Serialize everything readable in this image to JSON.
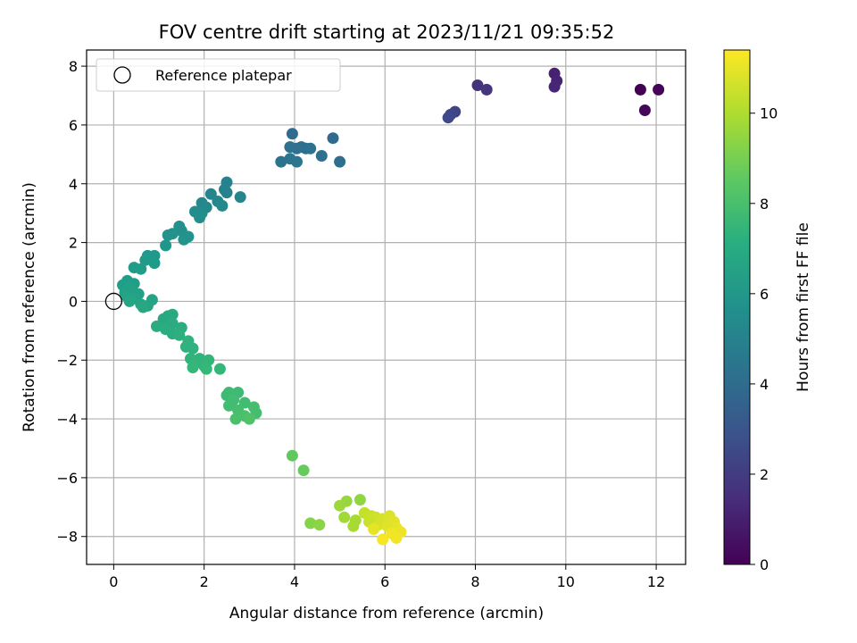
{
  "chart_data": {
    "type": "scatter",
    "title": "FOV centre drift starting at 2023/11/21 09:35:52",
    "xlabel": "Angular distance from reference (arcmin)",
    "ylabel": "Rotation from reference (arcmin)",
    "xlim": [
      -0.6,
      12.65
    ],
    "ylim": [
      -8.95,
      8.55
    ],
    "xticks": [
      0,
      2,
      4,
      6,
      8,
      10,
      12
    ],
    "yticks": [
      -8,
      -6,
      -4,
      -2,
      0,
      2,
      4,
      6,
      8
    ],
    "grid": true,
    "legend": {
      "label": "Reference platepar",
      "position": "top-left"
    },
    "reference_point": {
      "x": 0,
      "y": 0
    },
    "colorbar": {
      "label": "Hours from first FF file",
      "colormap": "viridis",
      "range": [
        0,
        11.4
      ],
      "ticks": [
        0,
        2,
        4,
        6,
        8,
        10
      ]
    },
    "series": [
      {
        "columns": [
          "x",
          "y",
          "hours"
        ],
        "points": [
          [
            11.65,
            7.2,
            0.0
          ],
          [
            12.05,
            7.2,
            0.1
          ],
          [
            11.75,
            6.5,
            0.2
          ],
          [
            9.75,
            7.75,
            1.0
          ],
          [
            9.8,
            7.5,
            1.1
          ],
          [
            9.75,
            7.3,
            1.2
          ],
          [
            8.05,
            7.35,
            1.6
          ],
          [
            8.25,
            7.2,
            1.7
          ],
          [
            7.55,
            6.45,
            2.3
          ],
          [
            7.45,
            6.35,
            2.4
          ],
          [
            7.4,
            6.25,
            2.5
          ],
          [
            3.95,
            5.7,
            4.0
          ],
          [
            4.25,
            5.2,
            4.1
          ],
          [
            4.15,
            5.25,
            4.1
          ],
          [
            4.85,
            5.55,
            3.9
          ],
          [
            3.9,
            5.25,
            4.2
          ],
          [
            4.05,
            5.2,
            4.2
          ],
          [
            4.35,
            5.2,
            4.3
          ],
          [
            4.6,
            4.95,
            4.2
          ],
          [
            5.0,
            4.75,
            4.1
          ],
          [
            3.7,
            4.75,
            4.4
          ],
          [
            3.9,
            4.85,
            4.5
          ],
          [
            4.05,
            4.75,
            4.5
          ],
          [
            2.5,
            4.05,
            5.0
          ],
          [
            2.45,
            3.8,
            5.1
          ],
          [
            2.5,
            3.7,
            5.1
          ],
          [
            2.15,
            3.65,
            5.2
          ],
          [
            2.8,
            3.55,
            5.2
          ],
          [
            2.3,
            3.4,
            5.3
          ],
          [
            1.95,
            3.35,
            5.3
          ],
          [
            2.4,
            3.25,
            5.4
          ],
          [
            2.05,
            3.2,
            5.4
          ],
          [
            1.8,
            3.05,
            5.5
          ],
          [
            1.95,
            3.0,
            5.5
          ],
          [
            1.9,
            2.85,
            5.6
          ],
          [
            1.45,
            2.55,
            5.7
          ],
          [
            1.5,
            2.4,
            5.7
          ],
          [
            1.3,
            2.3,
            5.8
          ],
          [
            1.2,
            2.25,
            5.8
          ],
          [
            1.65,
            2.2,
            5.9
          ],
          [
            1.55,
            2.1,
            5.9
          ],
          [
            1.15,
            1.9,
            6.0
          ],
          [
            0.75,
            1.55,
            6.1
          ],
          [
            0.9,
            1.55,
            6.1
          ],
          [
            0.7,
            1.4,
            6.2
          ],
          [
            0.9,
            1.3,
            6.2
          ],
          [
            0.45,
            1.15,
            6.3
          ],
          [
            0.6,
            1.1,
            6.3
          ],
          [
            0.3,
            0.7,
            6.4
          ],
          [
            0.45,
            0.6,
            6.4
          ],
          [
            0.2,
            0.55,
            6.4
          ],
          [
            0.35,
            0.45,
            6.5
          ],
          [
            0.25,
            0.3,
            6.5
          ],
          [
            0.55,
            0.25,
            6.5
          ],
          [
            0.3,
            0.15,
            6.6
          ],
          [
            0.45,
            0.1,
            6.6
          ],
          [
            0.85,
            0.05,
            6.6
          ],
          [
            0.35,
            0.0,
            6.7
          ],
          [
            0.6,
            -0.1,
            6.7
          ],
          [
            0.75,
            -0.15,
            6.7
          ],
          [
            0.65,
            -0.2,
            6.8
          ],
          [
            1.2,
            -0.5,
            6.9
          ],
          [
            1.3,
            -0.45,
            6.9
          ],
          [
            1.1,
            -0.6,
            6.9
          ],
          [
            1.3,
            -0.75,
            7.0
          ],
          [
            0.95,
            -0.85,
            7.0
          ],
          [
            1.5,
            -0.9,
            7.1
          ],
          [
            1.15,
            -0.95,
            7.1
          ],
          [
            1.3,
            -1.1,
            7.1
          ],
          [
            1.45,
            -1.15,
            7.2
          ],
          [
            1.65,
            -1.35,
            7.3
          ],
          [
            1.6,
            -1.55,
            7.3
          ],
          [
            1.75,
            -1.6,
            7.3
          ],
          [
            1.7,
            -1.95,
            7.4
          ],
          [
            1.9,
            -1.95,
            7.4
          ],
          [
            2.1,
            -2.0,
            7.5
          ],
          [
            1.8,
            -2.1,
            7.5
          ],
          [
            2.0,
            -2.2,
            7.5
          ],
          [
            2.35,
            -2.3,
            7.6
          ],
          [
            1.75,
            -2.25,
            7.6
          ],
          [
            2.05,
            -2.3,
            7.6
          ],
          [
            2.55,
            -3.1,
            7.8
          ],
          [
            2.75,
            -3.1,
            7.8
          ],
          [
            2.5,
            -3.2,
            7.8
          ],
          [
            2.65,
            -3.35,
            7.9
          ],
          [
            2.9,
            -3.45,
            7.9
          ],
          [
            2.55,
            -3.55,
            7.9
          ],
          [
            3.1,
            -3.6,
            8.0
          ],
          [
            2.75,
            -3.7,
            8.0
          ],
          [
            3.15,
            -3.8,
            8.0
          ],
          [
            2.9,
            -3.9,
            8.1
          ],
          [
            2.7,
            -4.0,
            8.1
          ],
          [
            3.0,
            -4.0,
            8.2
          ],
          [
            3.95,
            -5.25,
            8.6
          ],
          [
            4.2,
            -5.75,
            8.7
          ],
          [
            5.45,
            -6.75,
            9.5
          ],
          [
            5.15,
            -6.8,
            9.6
          ],
          [
            5.0,
            -6.95,
            9.7
          ],
          [
            5.1,
            -7.35,
            9.8
          ],
          [
            5.35,
            -7.45,
            9.9
          ],
          [
            5.3,
            -7.65,
            9.9
          ],
          [
            4.35,
            -7.55,
            9.3
          ],
          [
            4.55,
            -7.6,
            9.4
          ],
          [
            5.55,
            -7.2,
            10.4
          ],
          [
            5.7,
            -7.3,
            10.5
          ],
          [
            5.8,
            -7.35,
            10.6
          ],
          [
            5.95,
            -7.4,
            10.7
          ],
          [
            6.1,
            -7.3,
            10.8
          ],
          [
            6.2,
            -7.5,
            10.9
          ],
          [
            6.25,
            -7.7,
            11.0
          ],
          [
            6.35,
            -7.85,
            11.1
          ],
          [
            6.25,
            -8.05,
            11.2
          ],
          [
            5.95,
            -8.1,
            11.3
          ],
          [
            5.65,
            -7.5,
            10.5
          ],
          [
            5.85,
            -7.6,
            10.7
          ],
          [
            6.05,
            -7.65,
            10.9
          ],
          [
            5.75,
            -7.75,
            11.0
          ],
          [
            6.15,
            -7.9,
            11.2
          ]
        ]
      }
    ]
  }
}
